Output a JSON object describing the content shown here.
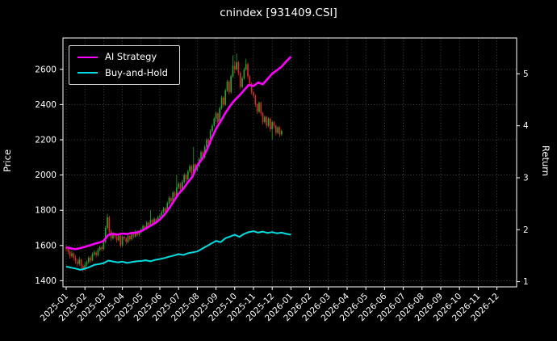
{
  "window": {
    "background": "#000000",
    "text_color": "#ffffff"
  },
  "chart_data": {
    "type": "candlestick",
    "title": "cnindex [931409.CSI]",
    "legend_position": "upper left",
    "grid": true,
    "background": "#000000",
    "up_color": "#2ca02c",
    "down_color": "#d62728",
    "x_tick_labels": [
      "2025-01",
      "2025-02",
      "2025-03",
      "2025-04",
      "2025-05",
      "2025-06",
      "2025-07",
      "2025-08",
      "2025-09",
      "2025-10",
      "2025-11",
      "2025-12",
      "2026-01",
      "2026-02",
      "2026-03",
      "2026-04",
      "2026-05",
      "2026-06",
      "2026-07",
      "2026-08",
      "2026-09",
      "2026-10",
      "2026-11",
      "2026-12"
    ],
    "price_axis": {
      "label": "Price",
      "ticks": [
        1400,
        1600,
        1800,
        2000,
        2200,
        2400,
        2600
      ],
      "range": [
        1365,
        2778
      ]
    },
    "return_axis": {
      "label": "Return",
      "ticks": [
        1,
        2,
        3,
        4,
        5
      ],
      "range": [
        0.9,
        5.69
      ]
    },
    "candle_start_month": 0,
    "candle_month_step": 0.1,
    "candles_ohlc": [
      [
        1590,
        1600,
        1565,
        1580
      ],
      [
        1580,
        1590,
        1550,
        1565
      ],
      [
        1565,
        1575,
        1525,
        1540
      ],
      [
        1540,
        1570,
        1530,
        1555
      ],
      [
        1555,
        1560,
        1515,
        1530
      ],
      [
        1530,
        1545,
        1495,
        1510
      ],
      [
        1510,
        1525,
        1480,
        1495
      ],
      [
        1495,
        1535,
        1485,
        1520
      ],
      [
        1520,
        1525,
        1470,
        1485
      ],
      [
        1485,
        1495,
        1450,
        1470
      ],
      [
        1470,
        1505,
        1460,
        1490
      ],
      [
        1490,
        1515,
        1480,
        1505
      ],
      [
        1505,
        1540,
        1495,
        1530
      ],
      [
        1530,
        1540,
        1500,
        1515
      ],
      [
        1515,
        1560,
        1510,
        1550
      ],
      [
        1550,
        1572,
        1540,
        1560
      ],
      [
        1560,
        1570,
        1532,
        1545
      ],
      [
        1545,
        1585,
        1538,
        1575
      ],
      [
        1575,
        1600,
        1565,
        1590
      ],
      [
        1590,
        1598,
        1566,
        1580
      ],
      [
        1580,
        1632,
        1574,
        1620
      ],
      [
        1620,
        1712,
        1612,
        1700
      ],
      [
        1700,
        1780,
        1690,
        1760
      ],
      [
        1760,
        1768,
        1662,
        1680
      ],
      [
        1680,
        1690,
        1625,
        1640
      ],
      [
        1640,
        1676,
        1632,
        1665
      ],
      [
        1665,
        1672,
        1638,
        1650
      ],
      [
        1650,
        1660,
        1616,
        1630
      ],
      [
        1630,
        1665,
        1622,
        1655
      ],
      [
        1655,
        1660,
        1588,
        1600
      ],
      [
        1600,
        1658,
        1592,
        1650
      ],
      [
        1650,
        1656,
        1628,
        1640
      ],
      [
        1640,
        1648,
        1606,
        1620
      ],
      [
        1620,
        1664,
        1612,
        1655
      ],
      [
        1655,
        1660,
        1624,
        1635
      ],
      [
        1635,
        1674,
        1628,
        1665
      ],
      [
        1665,
        1672,
        1640,
        1650
      ],
      [
        1650,
        1690,
        1644,
        1680
      ],
      [
        1680,
        1686,
        1650,
        1660
      ],
      [
        1660,
        1684,
        1652,
        1675
      ],
      [
        1675,
        1700,
        1668,
        1690
      ],
      [
        1690,
        1720,
        1682,
        1710
      ],
      [
        1710,
        1716,
        1684,
        1695
      ],
      [
        1695,
        1740,
        1688,
        1730
      ],
      [
        1730,
        1736,
        1702,
        1715
      ],
      [
        1715,
        1800,
        1708,
        1745
      ],
      [
        1745,
        1752,
        1714,
        1725
      ],
      [
        1725,
        1760,
        1718,
        1750
      ],
      [
        1750,
        1756,
        1722,
        1735
      ],
      [
        1735,
        1770,
        1728,
        1760
      ],
      [
        1760,
        1782,
        1752,
        1770
      ],
      [
        1770,
        1800,
        1762,
        1790
      ],
      [
        1790,
        1820,
        1782,
        1810
      ],
      [
        1810,
        1818,
        1784,
        1795
      ],
      [
        1795,
        1850,
        1788,
        1840
      ],
      [
        1840,
        1880,
        1832,
        1870
      ],
      [
        1870,
        1878,
        1838,
        1850
      ],
      [
        1850,
        1910,
        1842,
        1900
      ],
      [
        1900,
        1908,
        1866,
        1880
      ],
      [
        1880,
        2000,
        1872,
        1930
      ],
      [
        1930,
        1962,
        1920,
        1950
      ],
      [
        1950,
        1958,
        1905,
        1920
      ],
      [
        1920,
        1972,
        1912,
        1960
      ],
      [
        1960,
        2010,
        1952,
        2000
      ],
      [
        2000,
        2008,
        1960,
        1975
      ],
      [
        1975,
        2030,
        1968,
        2020
      ],
      [
        2020,
        2060,
        2012,
        2050
      ],
      [
        2050,
        2058,
        1996,
        2010
      ],
      [
        2010,
        2160,
        2002,
        2060
      ],
      [
        2060,
        2068,
        2016,
        2030
      ],
      [
        2030,
        2062,
        2022,
        2050
      ],
      [
        2050,
        2100,
        2042,
        2090
      ],
      [
        2090,
        2140,
        2082,
        2130
      ],
      [
        2130,
        2138,
        2086,
        2100
      ],
      [
        2100,
        2170,
        2092,
        2160
      ],
      [
        2160,
        2210,
        2152,
        2200
      ],
      [
        2200,
        2208,
        2166,
        2180
      ],
      [
        2180,
        2260,
        2172,
        2250
      ],
      [
        2250,
        2290,
        2242,
        2280
      ],
      [
        2280,
        2330,
        2272,
        2320
      ],
      [
        2320,
        2360,
        2300,
        2350
      ],
      [
        2350,
        2358,
        2286,
        2300
      ],
      [
        2300,
        2390,
        2292,
        2380
      ],
      [
        2380,
        2450,
        2372,
        2440
      ],
      [
        2440,
        2448,
        2386,
        2400
      ],
      [
        2400,
        2490,
        2392,
        2480
      ],
      [
        2480,
        2540,
        2472,
        2530
      ],
      [
        2530,
        2538,
        2456,
        2470
      ],
      [
        2470,
        2570,
        2462,
        2560
      ],
      [
        2560,
        2680,
        2552,
        2620
      ],
      [
        2620,
        2648,
        2576,
        2600
      ],
      [
        2600,
        2690,
        2592,
        2640
      ],
      [
        2640,
        2648,
        2566,
        2580
      ],
      [
        2580,
        2588,
        2486,
        2500
      ],
      [
        2500,
        2560,
        2492,
        2550
      ],
      [
        2550,
        2610,
        2542,
        2600
      ],
      [
        2600,
        2660,
        2592,
        2630
      ],
      [
        2630,
        2638,
        2546,
        2560
      ],
      [
        2560,
        2568,
        2506,
        2520
      ],
      [
        2520,
        2528,
        2456,
        2470
      ],
      [
        2470,
        2478,
        2436,
        2450
      ],
      [
        2450,
        2458,
        2386,
        2400
      ],
      [
        2400,
        2408,
        2346,
        2360
      ],
      [
        2360,
        2418,
        2352,
        2410
      ],
      [
        2410,
        2416,
        2336,
        2350
      ],
      [
        2350,
        2358,
        2286,
        2300
      ],
      [
        2300,
        2338,
        2292,
        2330
      ],
      [
        2330,
        2336,
        2266,
        2280
      ],
      [
        2280,
        2328,
        2272,
        2320
      ],
      [
        2320,
        2326,
        2246,
        2260
      ],
      [
        2260,
        2308,
        2200,
        2300
      ],
      [
        2300,
        2306,
        2266,
        2280
      ],
      [
        2280,
        2286,
        2226,
        2240
      ],
      [
        2240,
        2278,
        2232,
        2270
      ],
      [
        2270,
        2276,
        2216,
        2230
      ],
      [
        2230,
        2258,
        2222,
        2250
      ]
    ],
    "series": [
      {
        "name": "AI Strategy",
        "color": "#ff00ff",
        "line_width": 2.6,
        "start_month": 0,
        "month_step": 0.25,
        "values": [
          1590,
          1584,
          1579,
          1585,
          1592,
          1600,
          1609,
          1616,
          1626,
          1660,
          1666,
          1662,
          1668,
          1665,
          1671,
          1673,
          1681,
          1696,
          1712,
          1727,
          1747,
          1776,
          1812,
          1852,
          1893,
          1922,
          1958,
          1992,
          2055,
          2090,
          2140,
          2205,
          2262,
          2305,
          2352,
          2392,
          2425,
          2452,
          2482,
          2512,
          2505,
          2525,
          2515,
          2545,
          2575,
          2595,
          2615,
          2645,
          2672
        ]
      },
      {
        "name": "Buy-and-Hold",
        "color": "#00dde0",
        "line_width": 2.0,
        "start_month": 0,
        "month_step": 0.25,
        "values": [
          1480,
          1474,
          1469,
          1462,
          1468,
          1478,
          1490,
          1494,
          1500,
          1514,
          1509,
          1504,
          1508,
          1501,
          1506,
          1510,
          1512,
          1516,
          1510,
          1518,
          1523,
          1529,
          1536,
          1543,
          1551,
          1546,
          1556,
          1561,
          1566,
          1581,
          1596,
          1611,
          1626,
          1619,
          1641,
          1651,
          1661,
          1649,
          1666,
          1676,
          1681,
          1673,
          1679,
          1671,
          1676,
          1669,
          1673,
          1666,
          1661
        ]
      }
    ]
  }
}
